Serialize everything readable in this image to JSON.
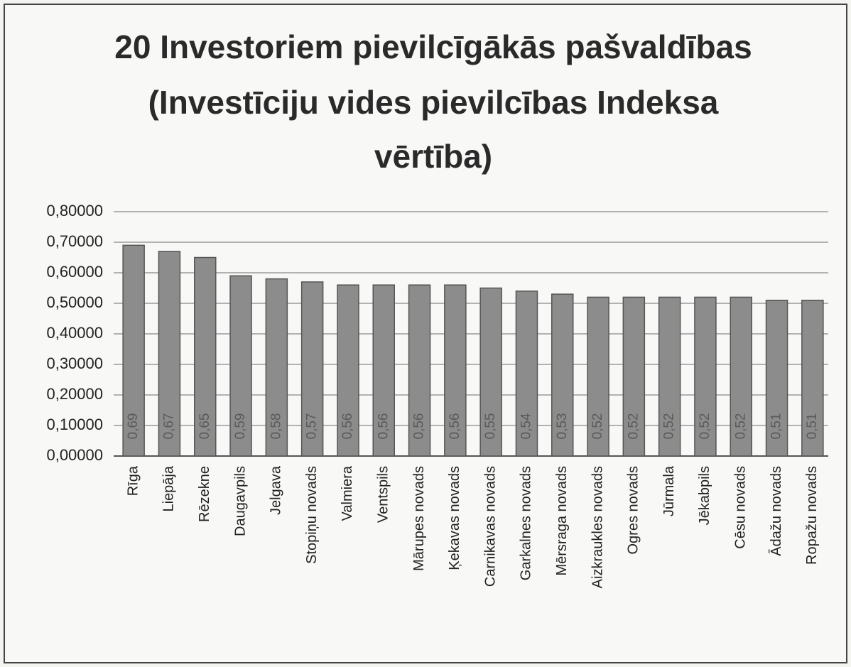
{
  "chart_data": {
    "type": "bar",
    "title": [
      "20 Investoriem pievilcīgākās pašvaldības",
      "(Investīciju vides pievilcības Indeksa",
      "vērtība)"
    ],
    "categories": [
      "Rīga",
      "Liepāja",
      "Rēzekne",
      "Daugavpils",
      "Jelgava",
      "Stopiņu novads",
      "Valmiera",
      "Ventspils",
      "Mārupes novads",
      "Ķekavas novads",
      "Carnikavas novads",
      "Garkalnes novads",
      "Mērsraga novads",
      "Aizkraukles novads",
      "Ogres novads",
      "Jūrmala",
      "Jēkabpils",
      "Cēsu novads",
      "Ādažu novads",
      "Ropažu novads"
    ],
    "values": [
      0.69,
      0.67,
      0.65,
      0.59,
      0.58,
      0.57,
      0.56,
      0.56,
      0.56,
      0.56,
      0.55,
      0.54,
      0.53,
      0.52,
      0.52,
      0.52,
      0.52,
      0.52,
      0.51,
      0.51
    ],
    "value_labels": [
      "0,69",
      "0,67",
      "0,65",
      "0,59",
      "0,58",
      "0,57",
      "0,56",
      "0,56",
      "0,56",
      "0,56",
      "0,55",
      "0,54",
      "0,53",
      "0,52",
      "0,52",
      "0,52",
      "0,52",
      "0,52",
      "0,51",
      "0,51"
    ],
    "color": "#8c8c8c",
    "ylim": [
      0,
      0.8
    ],
    "yticks": [
      {
        "value": 0,
        "label": "0,00000"
      },
      {
        "value": 0.1,
        "label": "0,10000"
      },
      {
        "value": 0.2,
        "label": "0,20000"
      },
      {
        "value": 0.3,
        "label": "0,30000"
      },
      {
        "value": 0.4,
        "label": "0,40000"
      },
      {
        "value": 0.5,
        "label": "0,50000"
      },
      {
        "value": 0.6,
        "label": "0,60000"
      },
      {
        "value": 0.7,
        "label": "0,70000"
      },
      {
        "value": 0.8,
        "label": "0,80000"
      }
    ],
    "grid": true
  }
}
